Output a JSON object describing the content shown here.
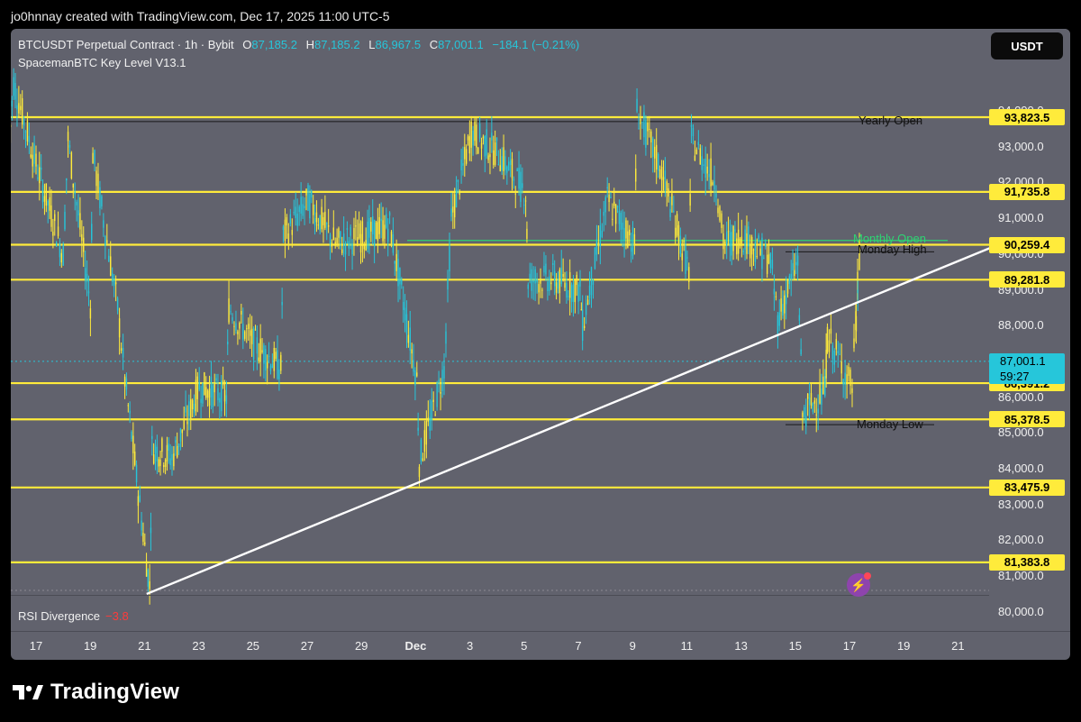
{
  "header": {
    "text": "jo0hnnay created with TradingView.com, Dec 17, 2025 11:00 UTC-5"
  },
  "legend": {
    "title": "BTCUSDT Perpetual Contract · 1h · Bybit",
    "o_label": "O",
    "o_value": "87,185.2",
    "h_label": "H",
    "h_value": "87,185.2",
    "l_label": "L",
    "l_value": "86,967.5",
    "c_label": "C",
    "c_value": "87,001.1",
    "change": "−184.1 (−0.21%)",
    "indicator": "SpacemanBTC Key Level V13.1"
  },
  "currency": "USDT",
  "rsi": {
    "label": "RSI Divergence",
    "value": "−3.8"
  },
  "brand": {
    "name": "TradingView"
  },
  "colors": {
    "panel": "#61626d",
    "level": "#ffeb3b",
    "trend": "#ffffff",
    "candle_up": "#ffeb3b",
    "candle_down": "#26c6da",
    "current_price": "#26c6da"
  },
  "chart_data": {
    "type": "line",
    "x_ticks": [
      "17",
      "19",
      "21",
      "23",
      "25",
      "27",
      "29",
      "Dec",
      "3",
      "5",
      "7",
      "9",
      "11",
      "13",
      "15",
      "17",
      "19",
      "21"
    ],
    "y_ticks": [
      "94,000.0",
      "93,000.0",
      "92,000.0",
      "91,000.0",
      "90,000.0",
      "89,000.0",
      "88,000.0",
      "87,000.0",
      "86,000.0",
      "85,000.0",
      "84,000.0",
      "83,000.0",
      "82,000.0",
      "81,000.0",
      "80,000.0"
    ],
    "ylim": [
      79500,
      95000
    ],
    "key_levels": [
      {
        "label": "93,823.5",
        "value": 93823.5
      },
      {
        "label": "91,735.8",
        "value": 91735.8
      },
      {
        "label": "90,259.4",
        "value": 90259.4
      },
      {
        "label": "89,281.8",
        "value": 89281.8
      },
      {
        "label": "86,391.2",
        "value": 86391.2
      },
      {
        "label": "85,378.5",
        "value": 85378.5
      },
      {
        "label": "83,475.9",
        "value": 83475.9
      },
      {
        "label": "81,383.8",
        "value": 81383.8
      }
    ],
    "current_price": {
      "label": "87,001.1",
      "countdown": "59:27",
      "value": 87001.1
    },
    "annotations": [
      {
        "text": "Yearly Open",
        "value": 93700,
        "color": "dark"
      },
      {
        "text": "Monthly Open",
        "value": 90400,
        "color": "green"
      },
      {
        "text": "Monday High",
        "value": 90100,
        "color": "dark"
      },
      {
        "text": "Monday Low",
        "value": 85200,
        "color": "dark"
      }
    ],
    "trendline": {
      "from": {
        "x": "Nov 21",
        "y": 80500
      },
      "to": {
        "x": "Dec 22",
        "y": 90250
      }
    },
    "price_path": [
      {
        "x": "Nov 16",
        "y": 93000
      },
      {
        "x": "Nov 16",
        "y": 94800
      },
      {
        "x": "Nov 17",
        "y": 92500
      },
      {
        "x": "Nov 18",
        "y": 90000
      },
      {
        "x": "Nov 18",
        "y": 93200
      },
      {
        "x": "Nov 19",
        "y": 88600
      },
      {
        "x": "Nov 19",
        "y": 92800
      },
      {
        "x": "Nov 20",
        "y": 88500
      },
      {
        "x": "Nov 20",
        "y": 86500
      },
      {
        "x": "Nov 21",
        "y": 81800
      },
      {
        "x": "Nov 21",
        "y": 80700
      },
      {
        "x": "Nov 21",
        "y": 84600
      },
      {
        "x": "Nov 22",
        "y": 84300
      },
      {
        "x": "Nov 23",
        "y": 86300
      },
      {
        "x": "Nov 24",
        "y": 86000
      },
      {
        "x": "Nov 24",
        "y": 88500
      },
      {
        "x": "Nov 25",
        "y": 87500
      },
      {
        "x": "Nov 26",
        "y": 86800
      },
      {
        "x": "Nov 26",
        "y": 90500
      },
      {
        "x": "Nov 27",
        "y": 91500
      },
      {
        "x": "Nov 28",
        "y": 90300
      },
      {
        "x": "Nov 29",
        "y": 90500
      },
      {
        "x": "Nov 30",
        "y": 90800
      },
      {
        "x": "Dec 1",
        "y": 86500
      },
      {
        "x": "Dec 1",
        "y": 84200
      },
      {
        "x": "Dec 2",
        "y": 86800
      },
      {
        "x": "Dec 2",
        "y": 91000
      },
      {
        "x": "Dec 3",
        "y": 93400
      },
      {
        "x": "Dec 4",
        "y": 92800
      },
      {
        "x": "Dec 5",
        "y": 91700
      },
      {
        "x": "Dec 5",
        "y": 89300
      },
      {
        "x": "Dec 6",
        "y": 89300
      },
      {
        "x": "Dec 7",
        "y": 89000
      },
      {
        "x": "Dec 7",
        "y": 88000
      },
      {
        "x": "Dec 8",
        "y": 91500
      },
      {
        "x": "Dec 9",
        "y": 90300
      },
      {
        "x": "Dec 9",
        "y": 94000
      },
      {
        "x": "Dec 10",
        "y": 92300
      },
      {
        "x": "Dec 11",
        "y": 89500
      },
      {
        "x": "Dec 11",
        "y": 93200
      },
      {
        "x": "Dec 12",
        "y": 92000
      },
      {
        "x": "Dec 12",
        "y": 90300
      },
      {
        "x": "Dec 13",
        "y": 90500
      },
      {
        "x": "Dec 14",
        "y": 89800
      },
      {
        "x": "Dec 14",
        "y": 88200
      },
      {
        "x": "Dec 15",
        "y": 89800
      },
      {
        "x": "Dec 15",
        "y": 85500
      },
      {
        "x": "Dec 16",
        "y": 86200
      },
      {
        "x": "Dec 16",
        "y": 87700
      },
      {
        "x": "Dec 17",
        "y": 86300
      },
      {
        "x": "Dec 17",
        "y": 90000
      },
      {
        "x": "Dec 17",
        "y": 87001.1
      }
    ]
  }
}
